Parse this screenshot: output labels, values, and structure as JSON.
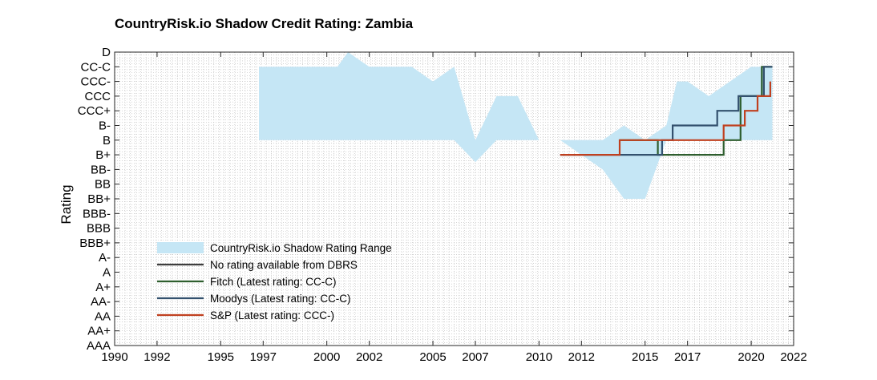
{
  "chart_data": {
    "type": "line",
    "title": "CountryRisk.io Shadow Credit Rating: Zambia",
    "ylabel": "Rating",
    "xlabel": "",
    "xlim": [
      1990,
      2022
    ],
    "x_ticks": [
      1990,
      1992,
      1995,
      1997,
      2000,
      2002,
      2005,
      2007,
      2010,
      2012,
      2015,
      2017,
      2020,
      2022
    ],
    "x_tick_labels": [
      "1990",
      "1992",
      "1995",
      "1997",
      "2000",
      "2002",
      "2005",
      "2007",
      "2010",
      "2012",
      "2015",
      "2017",
      "2020",
      "2022"
    ],
    "y_categories": [
      "AAA",
      "AA+",
      "AA",
      "AA-",
      "A+",
      "A",
      "A-",
      "BBB+",
      "BBB",
      "BBB-",
      "BB+",
      "BB",
      "BB-",
      "B+",
      "B",
      "B-",
      "CCC+",
      "CCC",
      "CCC-",
      "CC-C",
      "D"
    ],
    "grid": "minor dotted",
    "legend_position": "bottom-left",
    "colors": {
      "range": "#c5e6f5",
      "dbrs": "#3d3d3d",
      "fitch": "#2e5e2e",
      "moodys": "#33516e",
      "sp": "#c0401f"
    },
    "range_series": {
      "name": "CountryRisk.io Shadow Rating Range",
      "color": "#c5e6f5",
      "x": [
        1996.8,
        1997.5,
        1998.5,
        1999.5,
        2000.0,
        2000.5,
        2001.0,
        2001.5,
        2002.0,
        2003.0,
        2004.0,
        2005.0,
        2006.0,
        2007.0,
        2008.0,
        2009.0,
        2010.0,
        2011.0,
        2011.5,
        2012.0,
        2013.0,
        2014.0,
        2015.0,
        2016.0,
        2016.5,
        2017.0,
        2018.0,
        2019.0,
        2020.0,
        2021.0
      ],
      "upper": [
        19.0,
        19.0,
        19.0,
        19.0,
        19.0,
        19.0,
        20.0,
        19.5,
        19.0,
        19.0,
        19.0,
        18.0,
        19.0,
        14.0,
        17.0,
        17.0,
        14.0,
        14.0,
        14.0,
        14.0,
        14.0,
        15.0,
        14.0,
        15.0,
        18.0,
        18.0,
        17.0,
        18.0,
        19.0,
        19.0
      ],
      "lower": [
        14.0,
        14.0,
        14.0,
        14.0,
        14.0,
        14.0,
        14.0,
        14.0,
        14.0,
        14.0,
        14.0,
        14.0,
        14.0,
        12.5,
        14.0,
        14.0,
        14.0,
        14.0,
        13.5,
        13.0,
        12.0,
        10.0,
        10.0,
        14.0,
        14.0,
        14.0,
        14.0,
        14.0,
        14.0,
        14.0
      ]
    },
    "series": [
      {
        "name": "No rating available from DBRS",
        "color": "#3d3d3d",
        "x": [],
        "y": []
      },
      {
        "name": "Fitch (Latest rating: CC-C)",
        "color": "#2e5e2e",
        "x": [
          2013.8,
          2015.6,
          2015.6,
          2018.7,
          2018.7,
          2019.5,
          2019.5,
          2020.5,
          2020.5,
          2021.0
        ],
        "y": [
          14,
          14,
          13,
          13,
          14,
          14,
          17,
          17,
          19,
          19
        ]
      },
      {
        "name": "Moodys (Latest rating: CC-C)",
        "color": "#33516e",
        "x": [
          2011.0,
          2015.8,
          2015.8,
          2016.3,
          2016.3,
          2018.4,
          2018.4,
          2019.4,
          2019.4,
          2020.6,
          2020.6,
          2021.0
        ],
        "y": [
          13,
          13,
          14,
          14,
          15,
          15,
          16,
          16,
          17,
          17,
          19,
          19
        ]
      },
      {
        "name": "S&P (Latest rating: CCC-)",
        "color": "#c0401f",
        "x": [
          2011.0,
          2013.8,
          2013.8,
          2015.6,
          2015.6,
          2018.7,
          2018.7,
          2019.7,
          2019.7,
          2020.3,
          2020.3,
          2020.9,
          2020.9
        ],
        "y": [
          13,
          13,
          14,
          14,
          14,
          14,
          15,
          15,
          16,
          16,
          17,
          17,
          18
        ]
      }
    ]
  }
}
